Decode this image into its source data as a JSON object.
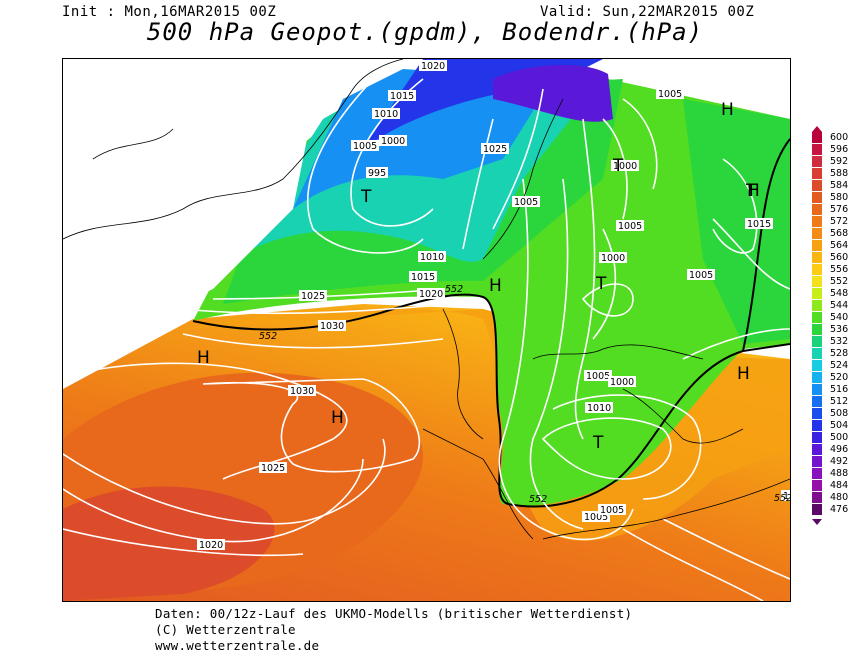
{
  "header": {
    "init": "Init : Mon,16MAR2015 00Z",
    "valid": "Valid: Sun,22MAR2015 00Z",
    "title": "500 hPa Geopot.(gpdm), Bodendr.(hPa)"
  },
  "footer": {
    "line1": "Daten: 00/12z-Lauf des UKMO-Modells (britischer Wetterdienst)",
    "line2": "(C) Wetterzentrale",
    "line3": "www.wetterzentrale.de"
  },
  "legend": {
    "levels": [
      {
        "v": "600",
        "c": "#b8003a"
      },
      {
        "v": "596",
        "c": "#c41640"
      },
      {
        "v": "592",
        "c": "#cf2c40"
      },
      {
        "v": "588",
        "c": "#d83e33"
      },
      {
        "v": "584",
        "c": "#dd4c2a"
      },
      {
        "v": "580",
        "c": "#e25a22"
      },
      {
        "v": "576",
        "c": "#e8681c"
      },
      {
        "v": "572",
        "c": "#ee7a18"
      },
      {
        "v": "568",
        "c": "#f28c14"
      },
      {
        "v": "564",
        "c": "#f6a012"
      },
      {
        "v": "560",
        "c": "#f9b614"
      },
      {
        "v": "556",
        "c": "#fbcb16"
      },
      {
        "v": "552",
        "c": "#f5e01c"
      },
      {
        "v": "548",
        "c": "#c8ee1a"
      },
      {
        "v": "544",
        "c": "#8ee81e"
      },
      {
        "v": "540",
        "c": "#52dc22"
      },
      {
        "v": "536",
        "c": "#2ad63c"
      },
      {
        "v": "532",
        "c": "#1ad27a"
      },
      {
        "v": "528",
        "c": "#18d2b2"
      },
      {
        "v": "524",
        "c": "#16cce0"
      },
      {
        "v": "520",
        "c": "#16b2f0"
      },
      {
        "v": "516",
        "c": "#1690f2"
      },
      {
        "v": "512",
        "c": "#166ef0"
      },
      {
        "v": "508",
        "c": "#1a4eec"
      },
      {
        "v": "504",
        "c": "#2434e8"
      },
      {
        "v": "500",
        "c": "#3a22e2"
      },
      {
        "v": "496",
        "c": "#5a18d8"
      },
      {
        "v": "492",
        "c": "#7414cc"
      },
      {
        "v": "488",
        "c": "#8812be"
      },
      {
        "v": "484",
        "c": "#9410a8"
      },
      {
        "v": "480",
        "c": "#7e0e8e"
      },
      {
        "v": "476",
        "c": "#5a0a66"
      }
    ]
  },
  "map": {
    "geopotential_labels": [
      "552",
      "552",
      "552",
      "552"
    ],
    "isobar_labels": [
      "1020",
      "1015",
      "1010",
      "1005",
      "1000",
      "995",
      "1005",
      "1000",
      "1005",
      "1010",
      "1015",
      "1020",
      "1025",
      "1030",
      "1030",
      "1025",
      "1020",
      "1025",
      "1005",
      "1000",
      "1005",
      "1010",
      "1005",
      "1015",
      "1005",
      "1000",
      "1005",
      "1"
    ],
    "pressure_centers": [
      "H",
      "H",
      "H",
      "H",
      "H",
      "H",
      "T",
      "T",
      "T",
      "T",
      "T"
    ],
    "colors": {
      "frame": "#000000",
      "isobar": "#ffffff",
      "coast": "#000000"
    }
  }
}
